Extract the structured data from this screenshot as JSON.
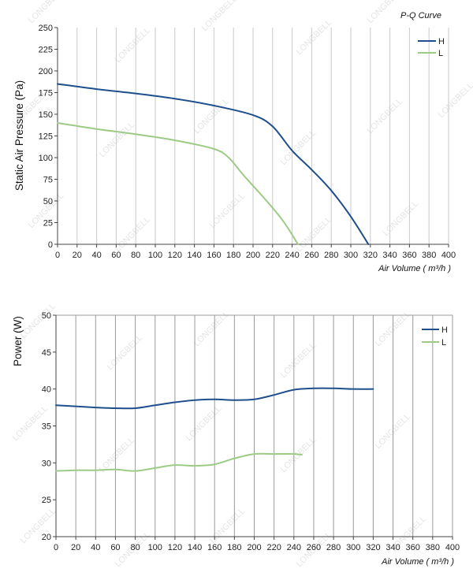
{
  "chart_data": [
    {
      "type": "line",
      "title": "P-Q Curve",
      "xlabel": "Air Volume ( m³/h )",
      "ylabel": "Static Air Pressure  (Pa)",
      "xlim": [
        0,
        400
      ],
      "ylim": [
        0,
        250
      ],
      "xticks": [
        0,
        20,
        40,
        60,
        80,
        100,
        120,
        140,
        160,
        180,
        200,
        220,
        240,
        260,
        280,
        300,
        320,
        340,
        360,
        380,
        400
      ],
      "yticks": [
        0,
        25,
        50,
        75,
        100,
        125,
        150,
        175,
        200,
        225,
        250
      ],
      "grid": "vertical",
      "legend_position": "top-right",
      "series": [
        {
          "name": "H",
          "color": "#1f4e8c",
          "points": [
            [
              0,
              185
            ],
            [
              40,
              179
            ],
            [
              80,
              174
            ],
            [
              120,
              168
            ],
            [
              160,
              160
            ],
            [
              200,
              149
            ],
            [
              220,
              136
            ],
            [
              240,
              108
            ],
            [
              260,
              86
            ],
            [
              280,
              62
            ],
            [
              300,
              32
            ],
            [
              318,
              0
            ]
          ]
        },
        {
          "name": "L",
          "color": "#9ccb86",
          "points": [
            [
              0,
              140
            ],
            [
              40,
              133
            ],
            [
              80,
              127
            ],
            [
              120,
              120
            ],
            [
              160,
              110
            ],
            [
              175,
              100
            ],
            [
              190,
              80
            ],
            [
              210,
              55
            ],
            [
              230,
              28
            ],
            [
              246,
              0
            ]
          ]
        }
      ]
    },
    {
      "type": "line",
      "title": "",
      "xlabel": "Air Volume ( m³/h )",
      "ylabel": "Power  (W)",
      "xlim": [
        0,
        400
      ],
      "ylim": [
        20,
        50
      ],
      "xticks": [
        0,
        20,
        40,
        60,
        80,
        100,
        120,
        140,
        160,
        180,
        200,
        220,
        240,
        260,
        280,
        300,
        320,
        340,
        360,
        380,
        400
      ],
      "yticks": [
        20,
        25,
        30,
        35,
        40,
        45,
        50
      ],
      "grid": "vertical",
      "legend_position": "top-right",
      "series": [
        {
          "name": "H",
          "color": "#1f4e8c",
          "points": [
            [
              0,
              37.8
            ],
            [
              40,
              37.5
            ],
            [
              60,
              37.4
            ],
            [
              80,
              37.4
            ],
            [
              100,
              37.8
            ],
            [
              120,
              38.2
            ],
            [
              140,
              38.5
            ],
            [
              160,
              38.6
            ],
            [
              180,
              38.5
            ],
            [
              200,
              38.6
            ],
            [
              220,
              39.2
            ],
            [
              240,
              39.9
            ],
            [
              260,
              40.1
            ],
            [
              280,
              40.1
            ],
            [
              300,
              40.0
            ],
            [
              320,
              40.0
            ]
          ]
        },
        {
          "name": "L",
          "color": "#9ccb86",
          "points": [
            [
              0,
              28.9
            ],
            [
              20,
              29.0
            ],
            [
              40,
              29.0
            ],
            [
              60,
              29.1
            ],
            [
              80,
              28.9
            ],
            [
              100,
              29.3
            ],
            [
              120,
              29.7
            ],
            [
              140,
              29.6
            ],
            [
              160,
              29.8
            ],
            [
              180,
              30.6
            ],
            [
              200,
              31.2
            ],
            [
              220,
              31.2
            ],
            [
              240,
              31.2
            ],
            [
              248,
              31.1
            ]
          ]
        }
      ]
    }
  ],
  "watermark": "LONGBELL"
}
